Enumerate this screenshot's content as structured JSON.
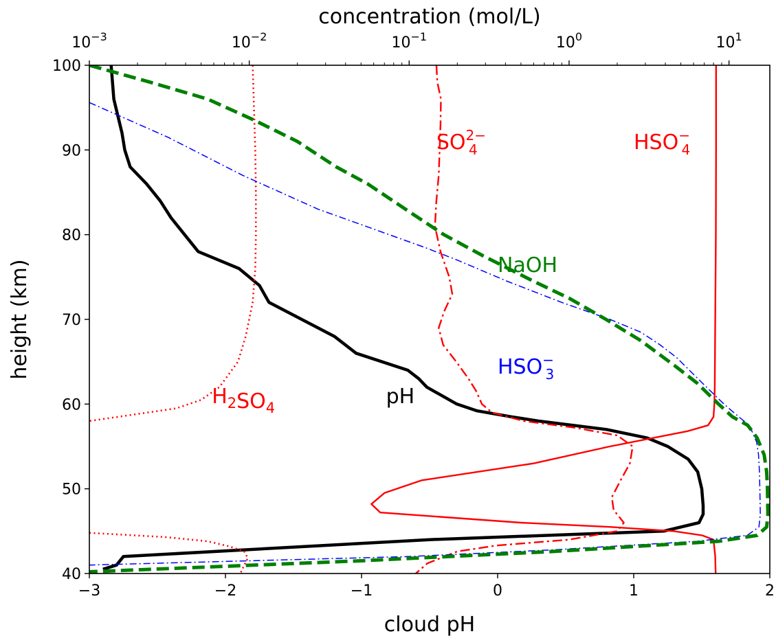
{
  "chart_data": {
    "type": "line",
    "xlabel": "cloud pH",
    "ylabel": "height (km)",
    "top_xlabel": "concentration (mol/L)",
    "xlim": [
      -3,
      2
    ],
    "ylim": [
      40,
      100
    ],
    "top_xscale": "log",
    "top_xlim": [
      0.001,
      18
    ],
    "x_ticks": [
      -3,
      -2,
      -1,
      0,
      1,
      2
    ],
    "x_tick_labels": [
      "−3",
      "−2",
      "−1",
      "0",
      "1",
      "2"
    ],
    "y_ticks": [
      40,
      50,
      60,
      70,
      80,
      90,
      100
    ],
    "y_tick_labels": [
      "40",
      "50",
      "60",
      "70",
      "80",
      "90",
      "100"
    ],
    "top_ticks": [
      {
        "value": 0.001,
        "base": "10",
        "exp": "−3"
      },
      {
        "value": 0.01,
        "base": "10",
        "exp": "−2"
      },
      {
        "value": 0.1,
        "base": "10",
        "exp": "−1"
      },
      {
        "value": 1,
        "base": "10",
        "exp": "0"
      },
      {
        "value": 10,
        "base": "10",
        "exp": "1"
      }
    ],
    "grid": false,
    "series": [
      {
        "name": "pH",
        "axis": "bottom",
        "color": "#000000",
        "style": "solid",
        "points": [
          [
            -2.84,
            100
          ],
          [
            -2.82,
            96
          ],
          [
            -2.76,
            92
          ],
          [
            -2.74,
            90
          ],
          [
            -2.7,
            88
          ],
          [
            -2.58,
            86
          ],
          [
            -2.48,
            84
          ],
          [
            -2.4,
            82
          ],
          [
            -2.3,
            80
          ],
          [
            -2.2,
            78
          ],
          [
            -1.9,
            76
          ],
          [
            -1.75,
            74
          ],
          [
            -1.68,
            72
          ],
          [
            -1.44,
            70
          ],
          [
            -1.2,
            68
          ],
          [
            -1.04,
            66
          ],
          [
            -0.66,
            64
          ],
          [
            -0.58,
            63
          ],
          [
            -0.52,
            62
          ],
          [
            -0.3,
            60
          ],
          [
            -0.15,
            59.2
          ],
          [
            0.1,
            58.5
          ],
          [
            0.3,
            58
          ],
          [
            0.8,
            57
          ],
          [
            1.1,
            56
          ],
          [
            1.25,
            55
          ],
          [
            1.4,
            53.5
          ],
          [
            1.47,
            52
          ],
          [
            1.5,
            50
          ],
          [
            1.51,
            48
          ],
          [
            1.51,
            47
          ],
          [
            1.48,
            46
          ],
          [
            1.22,
            45
          ],
          [
            -0.5,
            44
          ],
          [
            -2.75,
            42
          ],
          [
            -2.8,
            41
          ],
          [
            -2.9,
            40.5
          ]
        ]
      },
      {
        "name": "H2SO4",
        "axis": "top",
        "color": "#ff0000",
        "style": "dotted",
        "points": [
          [
            0.0105,
            100
          ],
          [
            0.0107,
            95
          ],
          [
            0.0109,
            90
          ],
          [
            0.011,
            85
          ],
          [
            0.011,
            80
          ],
          [
            0.0109,
            76
          ],
          [
            0.0105,
            72
          ],
          [
            0.0095,
            68
          ],
          [
            0.0085,
            65
          ],
          [
            0.0065,
            62
          ],
          [
            0.005,
            60.5
          ],
          [
            0.0035,
            59.5
          ],
          [
            0.001,
            58
          ]
        ]
      },
      {
        "name": "H2SO4 (lower)",
        "axis": "top",
        "color": "#ff0000",
        "style": "dotted",
        "points": [
          [
            0.001,
            44.8
          ],
          [
            0.003,
            44.3
          ],
          [
            0.0055,
            43.8
          ],
          [
            0.0075,
            43.2
          ],
          [
            0.0093,
            42.6
          ],
          [
            0.0098,
            41.8
          ],
          [
            0.0093,
            41
          ],
          [
            0.0088,
            40
          ]
        ]
      },
      {
        "name": "SO4 2-",
        "axis": "top",
        "color": "#ff0000",
        "style": "dashdot",
        "points": [
          [
            0.148,
            100
          ],
          [
            0.15,
            98
          ],
          [
            0.158,
            96
          ],
          [
            0.157,
            93
          ],
          [
            0.155,
            90
          ],
          [
            0.153,
            87
          ],
          [
            0.148,
            84
          ],
          [
            0.145,
            81
          ],
          [
            0.157,
            78
          ],
          [
            0.178,
            75
          ],
          [
            0.186,
            73
          ],
          [
            0.166,
            71
          ],
          [
            0.153,
            69
          ],
          [
            0.163,
            67
          ],
          [
            0.197,
            65
          ],
          [
            0.235,
            63
          ],
          [
            0.263,
            61.5
          ],
          [
            0.285,
            60
          ],
          [
            0.33,
            59
          ],
          [
            0.52,
            58
          ],
          [
            1.1,
            57.2
          ],
          [
            2.0,
            56.3
          ],
          [
            2.5,
            55
          ],
          [
            2.4,
            53
          ],
          [
            2.1,
            51
          ],
          [
            1.85,
            49
          ],
          [
            1.9,
            47.5
          ],
          [
            2.2,
            46
          ],
          [
            2.0,
            45
          ],
          [
            1.0,
            44
          ],
          [
            0.35,
            43.3
          ],
          [
            0.2,
            42.6
          ],
          [
            0.13,
            41.2
          ],
          [
            0.11,
            40
          ]
        ]
      },
      {
        "name": "HSO4-",
        "axis": "top",
        "color": "#ff0000",
        "style": "solid",
        "points": [
          [
            8.3,
            100
          ],
          [
            8.3,
            90
          ],
          [
            8.28,
            80
          ],
          [
            8.2,
            70
          ],
          [
            8.15,
            62
          ],
          [
            8.1,
            60
          ],
          [
            8.0,
            58.5
          ],
          [
            7.4,
            57.5
          ],
          [
            5.5,
            56.8
          ],
          [
            1.8,
            55
          ],
          [
            0.6,
            53
          ],
          [
            0.12,
            51
          ],
          [
            0.07,
            49.5
          ],
          [
            0.058,
            48.2
          ],
          [
            0.066,
            47.2
          ],
          [
            0.5,
            46
          ],
          [
            1.8,
            45.5
          ],
          [
            4.5,
            45
          ],
          [
            6.8,
            44.5
          ],
          [
            8.0,
            44
          ],
          [
            8.2,
            42
          ],
          [
            8.25,
            40
          ]
        ]
      },
      {
        "name": "HSO3-",
        "axis": "top",
        "color": "#0000ff",
        "style": "dashdot-thin",
        "points": [
          [
            0.001,
            95.6
          ],
          [
            0.0031,
            91.5
          ],
          [
            0.0091,
            87
          ],
          [
            0.027,
            83
          ],
          [
            0.05,
            81.2
          ],
          [
            0.075,
            80
          ],
          [
            0.125,
            78.5
          ],
          [
            0.2,
            77
          ],
          [
            0.41,
            74.5
          ],
          [
            0.9,
            72
          ],
          [
            1.8,
            70
          ],
          [
            2.8,
            68.5
          ],
          [
            3.7,
            67
          ],
          [
            4.7,
            65.5
          ],
          [
            6.8,
            62.5
          ],
          [
            9.3,
            60
          ],
          [
            11.5,
            58.5
          ],
          [
            13.4,
            57.5
          ],
          [
            14.9,
            55.5
          ],
          [
            15.3,
            54
          ],
          [
            15.5,
            52
          ],
          [
            15.6,
            50
          ],
          [
            15.7,
            47
          ],
          [
            15.4,
            45.5
          ],
          [
            13,
            44.5
          ],
          [
            6.3,
            43.8
          ],
          [
            0.8,
            42.8
          ],
          [
            0.1,
            42
          ],
          [
            0.01,
            41.5
          ],
          [
            0.001,
            41
          ]
        ]
      },
      {
        "name": "NaOH",
        "axis": "top",
        "color": "#008000",
        "style": "dashed",
        "points": [
          [
            0.001,
            100
          ],
          [
            0.0024,
            98
          ],
          [
            0.0055,
            96
          ],
          [
            0.0108,
            93.5
          ],
          [
            0.02,
            91
          ],
          [
            0.035,
            88
          ],
          [
            0.055,
            86
          ],
          [
            0.095,
            83
          ],
          [
            0.165,
            80
          ],
          [
            0.29,
            77.5
          ],
          [
            0.6,
            74.5
          ],
          [
            1.0,
            72.5
          ],
          [
            1.7,
            70
          ],
          [
            2.8,
            67.5
          ],
          [
            4.6,
            64.5
          ],
          [
            6.3,
            62.5
          ],
          [
            8.6,
            60
          ],
          [
            10.5,
            58.5
          ],
          [
            13.1,
            57.5
          ],
          [
            15,
            56
          ],
          [
            16.6,
            54
          ],
          [
            17.2,
            52
          ],
          [
            17.4,
            50
          ],
          [
            17.5,
            47
          ],
          [
            17.2,
            45.5
          ],
          [
            15,
            44.5
          ],
          [
            8.6,
            43.8
          ],
          [
            0.8,
            42.6
          ],
          [
            0.05,
            41.5
          ],
          [
            0.001,
            40.2
          ]
        ]
      }
    ],
    "annotations": [
      {
        "parts": [
          {
            "t": "SO"
          },
          {
            "sub": "4",
            "sup": "2−"
          }
        ],
        "color": "#ff0000",
        "x": -0.45,
        "y": 91
      },
      {
        "parts": [
          {
            "t": "HSO"
          },
          {
            "sub": "4",
            "sup": "−"
          }
        ],
        "color": "#ff0000",
        "x": 1.0,
        "y": 91
      },
      {
        "parts": [
          {
            "t": "NaOH"
          }
        ],
        "color": "#008000",
        "x": 0.0,
        "y": 76.5
      },
      {
        "parts": [
          {
            "t": "HSO"
          },
          {
            "sub": "3",
            "sup": "−"
          }
        ],
        "color": "#0000ff",
        "x": 0.0,
        "y": 64.5
      },
      {
        "parts": [
          {
            "t": "H"
          },
          {
            "sub": "2"
          },
          {
            "t": "SO"
          },
          {
            "sub": "4"
          }
        ],
        "color": "#ff0000",
        "x": -2.1,
        "y": 61
      },
      {
        "parts": [
          {
            "t": "pH"
          }
        ],
        "color": "#000000",
        "x": -0.82,
        "y": 61
      }
    ]
  }
}
